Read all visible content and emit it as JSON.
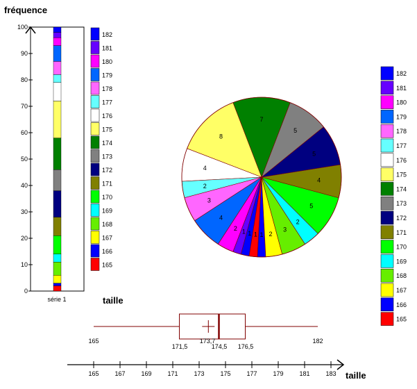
{
  "chart_data": [
    {
      "type": "stacked-bar",
      "ylabel": "fréquence",
      "xlabel": "taille",
      "category": "série 1",
      "ylim": [
        0,
        100
      ],
      "yticks": [
        0,
        10,
        20,
        30,
        40,
        50,
        60,
        70,
        80,
        90,
        100
      ],
      "segments": [
        {
          "name": "165",
          "value": 2,
          "color": "#ff0000"
        },
        {
          "name": "166",
          "value": 1,
          "color": "#0000ff"
        },
        {
          "name": "167",
          "value": 3,
          "color": "#ffff00"
        },
        {
          "name": "168",
          "value": 5,
          "color": "#66ee00"
        },
        {
          "name": "169",
          "value": 3,
          "color": "#00ffff"
        },
        {
          "name": "170",
          "value": 7,
          "color": "#00ff00"
        },
        {
          "name": "171",
          "value": 7,
          "color": "#808000"
        },
        {
          "name": "172",
          "value": 10,
          "color": "#000080"
        },
        {
          "name": "173",
          "value": 8,
          "color": "#808080"
        },
        {
          "name": "174",
          "value": 12,
          "color": "#008000"
        },
        {
          "name": "175",
          "value": 14,
          "color": "#ffff66"
        },
        {
          "name": "176",
          "value": 7,
          "color": "#ffffff"
        },
        {
          "name": "177",
          "value": 3,
          "color": "#66ffff"
        },
        {
          "name": "178",
          "value": 5,
          "color": "#ff66ff"
        },
        {
          "name": "179",
          "value": 6,
          "color": "#0066ff"
        },
        {
          "name": "180",
          "value": 3,
          "color": "#ff00ff"
        },
        {
          "name": "181",
          "value": 2,
          "color": "#6600ff"
        },
        {
          "name": "182",
          "value": 2,
          "color": "#0000ff"
        }
      ]
    },
    {
      "type": "pie",
      "slices": [
        {
          "name": "165",
          "value": 1,
          "color": "#ff0000"
        },
        {
          "name": "166",
          "value": 1,
          "color": "#0000ff"
        },
        {
          "name": "167",
          "value": 2,
          "color": "#ffff00"
        },
        {
          "name": "168",
          "value": 3,
          "color": "#66ee00"
        },
        {
          "name": "169",
          "value": 2,
          "color": "#00ffff"
        },
        {
          "name": "170",
          "value": 5,
          "color": "#00ff00"
        },
        {
          "name": "171",
          "value": 4,
          "color": "#808000"
        },
        {
          "name": "172",
          "value": 5,
          "color": "#000080"
        },
        {
          "name": "173",
          "value": 5,
          "color": "#808080"
        },
        {
          "name": "174",
          "value": 7,
          "color": "#008000"
        },
        {
          "name": "175",
          "value": 8,
          "color": "#ffff66"
        },
        {
          "name": "176",
          "value": 4,
          "color": "#ffffff"
        },
        {
          "name": "177",
          "value": 2,
          "color": "#66ffff"
        },
        {
          "name": "178",
          "value": 3,
          "color": "#ff66ff"
        },
        {
          "name": "179",
          "value": 4,
          "color": "#0066ff"
        },
        {
          "name": "180",
          "value": 2,
          "color": "#ff00ff"
        },
        {
          "name": "181",
          "value": 1,
          "color": "#6600ff"
        },
        {
          "name": "182",
          "value": 1,
          "color": "#0000ff"
        }
      ]
    },
    {
      "type": "boxplot",
      "min": 165,
      "q1": 171.5,
      "mean": 173.7,
      "median": 174.5,
      "q3": 176.5,
      "max": 182,
      "labels": {
        "min": "165",
        "q1": "171,5",
        "mean": "173,7",
        "median": "174,5",
        "q3": "176,5",
        "max": "182"
      }
    },
    {
      "type": "axis",
      "xlabel": "taille",
      "ticks": [
        "165",
        "167",
        "169",
        "171",
        "173",
        "175",
        "177",
        "179",
        "181",
        "183"
      ]
    }
  ]
}
